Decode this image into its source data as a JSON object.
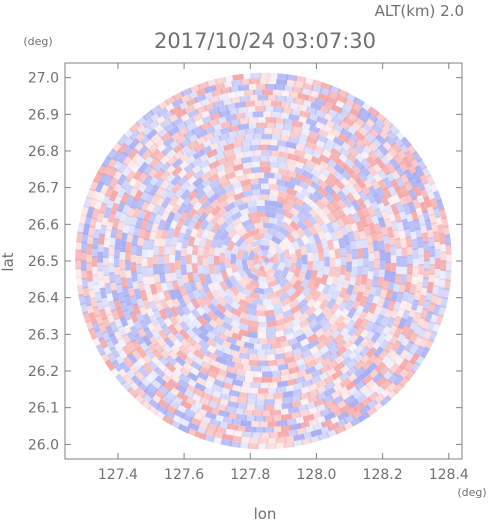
{
  "header": {
    "altitude_label": "ALT(km) 2.0",
    "timestamp": "2017/10/24 03:07:30"
  },
  "chart_data": {
    "type": "heatmap",
    "title": "2017/10/24 03:07:30",
    "xlabel": "lon",
    "ylabel": "lat",
    "x_unit": "(deg)",
    "y_unit": "(deg)",
    "xlim": [
      127.24,
      128.44
    ],
    "ylim": [
      25.96,
      27.04
    ],
    "x_ticks": [
      127.4,
      127.6,
      127.8,
      128.0,
      128.2,
      128.4
    ],
    "x_tick_labels": [
      "127.4",
      "127.6",
      "127.8",
      "128.0",
      "128.2",
      "128.4"
    ],
    "y_ticks": [
      26.0,
      26.1,
      26.2,
      26.3,
      26.4,
      26.5,
      26.6,
      26.7,
      26.8,
      26.9,
      27.0
    ],
    "y_tick_labels": [
      "26.0",
      "26.1",
      "26.2",
      "26.3",
      "26.4",
      "26.5",
      "26.6",
      "26.7",
      "26.8",
      "26.9",
      "27.0"
    ],
    "radar_center": [
      127.84,
      26.5
    ],
    "radar_radius_deg": 0.54,
    "grid": false,
    "colors": {
      "positive": "#f4a0a0",
      "negative": "#a0a8f4",
      "axis": "#808080",
      "text": "#707070"
    }
  }
}
